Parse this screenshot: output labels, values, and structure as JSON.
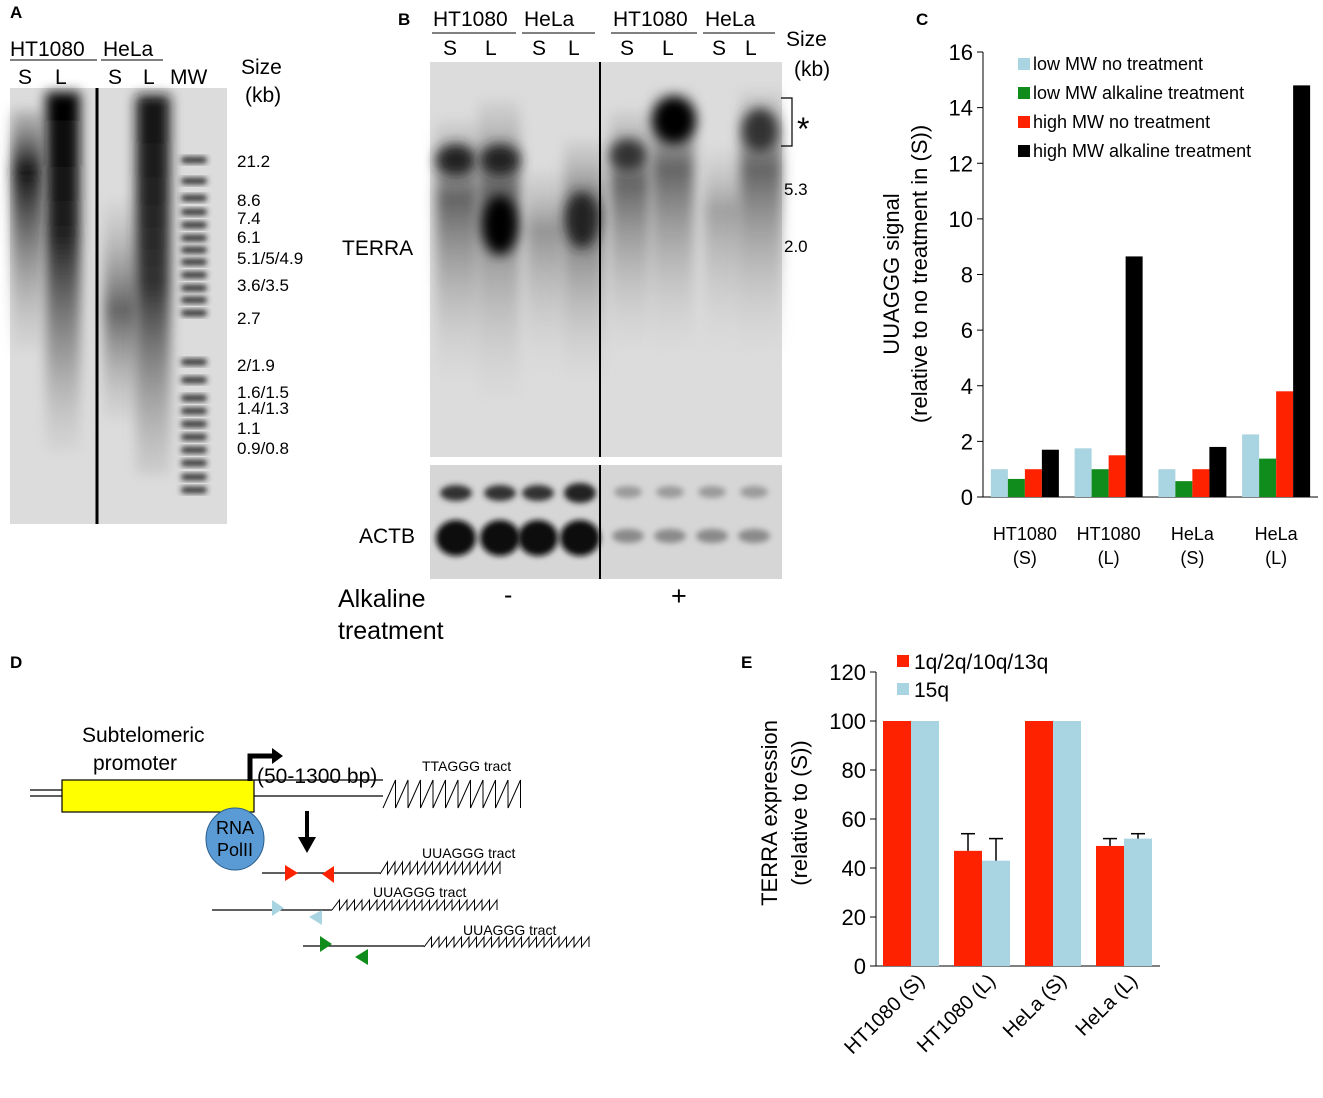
{
  "panel_a": {
    "letter": "A",
    "header_cells": [
      "HT1080",
      "HeLa"
    ],
    "lanes": [
      "S",
      "L",
      "S",
      "L",
      "MW"
    ],
    "size_header": [
      "Size",
      "(kb)"
    ],
    "size_labels": [
      "21.2",
      "8.6",
      "7.4",
      "6.1",
      "5.1/5/4.9",
      "3.6/3.5",
      "2.7",
      "2/1.9",
      "1.6/1.5",
      "1.4/1.3",
      "1.1",
      "0.9/0.8"
    ]
  },
  "panel_b": {
    "letter": "B",
    "header_cells": [
      "HT1080",
      "HeLa",
      "HT1080",
      "HeLa"
    ],
    "lanes": [
      "S",
      "L",
      "S",
      "L",
      "S",
      "L",
      "S",
      "L"
    ],
    "size_header": [
      "Size",
      "(kb)"
    ],
    "size_labels": [
      "5.3",
      "2.0"
    ],
    "asterisk": "*",
    "terra_label": "TERRA",
    "actb_label": "ACTB",
    "alkaline_label": [
      "Alkaline",
      "treatment"
    ],
    "minus": "-",
    "plus": "+"
  },
  "panel_c": {
    "letter": "C",
    "chart_data": {
      "type": "bar",
      "categories": [
        [
          "HT1080",
          "(S)"
        ],
        [
          "HT1080",
          "(L)"
        ],
        [
          "HeLa",
          "(S)"
        ],
        [
          "HeLa",
          "(L)"
        ]
      ],
      "series": [
        {
          "name": "low MW no treatment",
          "color": "#a9d4e1",
          "values": [
            1.0,
            1.75,
            1.0,
            2.25
          ]
        },
        {
          "name": "low MW alkaline treatment",
          "color": "#0f8c1b",
          "values": [
            0.65,
            1.0,
            0.57,
            1.38
          ]
        },
        {
          "name": "high MW no treatment",
          "color": "#ff2200",
          "values": [
            1.0,
            1.5,
            1.0,
            3.8
          ]
        },
        {
          "name": "high MW alkaline treatment",
          "color": "#000000",
          "values": [
            1.7,
            8.65,
            1.8,
            14.8
          ]
        }
      ],
      "ylabel": [
        "UUAGGG signal",
        "(relative to no treatment in (S))"
      ],
      "ylim": [
        0,
        16
      ],
      "yticks": [
        "0",
        "2",
        "4",
        "6",
        "8",
        "10",
        "12",
        "14",
        "16"
      ],
      "grid": false,
      "legend_position": "top-left"
    }
  },
  "panel_d": {
    "letter": "D",
    "promoter_label": [
      "Subtelomeric",
      "promoter"
    ],
    "length_label": "(50-1300 bp)",
    "ttaggg_label": "TTAGGG tract",
    "polymerase_label": [
      "RNA",
      "PolII"
    ],
    "uuaggg_labels": [
      "UUAGGG tract",
      "UUAGGG tract",
      "UUAGGG tract"
    ],
    "colors": {
      "promoter": "#ffff00",
      "polymerase": "#5b9bd5",
      "primer_1": "#ff2200",
      "primer_2": "#a9d4e1",
      "primer_3": "#0f8c1b"
    }
  },
  "panel_e": {
    "letter": "E",
    "chart_data": {
      "type": "bar",
      "categories": [
        "HT1080 (S)",
        "HT1080 (L)",
        "HeLa (S)",
        "HeLa (L)"
      ],
      "series": [
        {
          "name": "1q/2q/10q/13q",
          "color": "#ff2200",
          "values": [
            100,
            47,
            100,
            49
          ],
          "errors": [
            0,
            7,
            0,
            3
          ]
        },
        {
          "name": "15q",
          "color": "#a9d4e1",
          "values": [
            100,
            43,
            100,
            52
          ],
          "errors": [
            0,
            9,
            0,
            2
          ]
        }
      ],
      "ylabel": [
        "TERRA expression",
        "(relative to (S))"
      ],
      "ylim": [
        0,
        120
      ],
      "yticks": [
        "0",
        "20",
        "40",
        "60",
        "80",
        "100",
        "120"
      ],
      "grid": false,
      "legend_position": "top"
    }
  }
}
